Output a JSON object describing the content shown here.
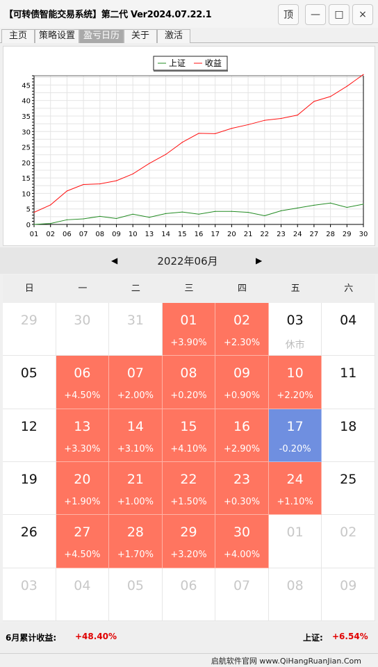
{
  "window": {
    "title": "【可转债智能交易系统】第二代 Ver2024.07.22.1",
    "buttons": {
      "top": "顶",
      "minimize": "—",
      "maximize": "□",
      "close": "×"
    }
  },
  "tabs": [
    {
      "label": "主页",
      "active": false
    },
    {
      "label": "策略设置",
      "active": false
    },
    {
      "label": "盈亏日历",
      "active": true
    },
    {
      "label": "关于",
      "active": false
    },
    {
      "label": "激活",
      "active": false
    }
  ],
  "chart_data": {
    "type": "line",
    "x": [
      "01",
      "02",
      "06",
      "07",
      "08",
      "09",
      "10",
      "13",
      "14",
      "15",
      "16",
      "17",
      "20",
      "21",
      "22",
      "23",
      "24",
      "27",
      "28",
      "29",
      "30"
    ],
    "series": [
      {
        "name": "上证",
        "color": "#228b22",
        "values": [
          0.0,
          0.3,
          1.5,
          1.8,
          2.6,
          1.9,
          3.3,
          2.3,
          3.5,
          4.0,
          3.3,
          4.2,
          4.2,
          3.9,
          2.8,
          4.4,
          5.3,
          6.2,
          6.9,
          5.5,
          6.54
        ]
      },
      {
        "name": "收益",
        "color": "#ff1010",
        "values": [
          3.9,
          6.3,
          10.8,
          12.9,
          13.1,
          14.1,
          16.3,
          19.7,
          22.6,
          26.5,
          29.4,
          29.3,
          31.0,
          32.2,
          33.6,
          34.2,
          35.3,
          39.7,
          41.3,
          44.6,
          48.4
        ]
      }
    ],
    "ylim": [
      0,
      48
    ],
    "yticks": [
      0,
      5,
      10,
      15,
      20,
      25,
      30,
      35,
      40,
      45
    ],
    "grid": true,
    "legend": "top-center"
  },
  "calendar": {
    "prev_icon": "triangle-left-icon",
    "next_icon": "triangle-right-icon",
    "month_label": "2022年06月",
    "weekdays": [
      "日",
      "一",
      "二",
      "三",
      "四",
      "五",
      "六"
    ],
    "weeks": [
      [
        {
          "day": "29",
          "state": "other"
        },
        {
          "day": "30",
          "state": "other"
        },
        {
          "day": "31",
          "state": "other"
        },
        {
          "day": "01",
          "state": "up",
          "pct": "+3.90%"
        },
        {
          "day": "02",
          "state": "up",
          "pct": "+2.30%"
        },
        {
          "day": "03",
          "state": "holiday",
          "note": "休市"
        },
        {
          "day": "04",
          "state": "plain"
        }
      ],
      [
        {
          "day": "05",
          "state": "plain"
        },
        {
          "day": "06",
          "state": "up",
          "pct": "+4.50%"
        },
        {
          "day": "07",
          "state": "up",
          "pct": "+2.00%"
        },
        {
          "day": "08",
          "state": "up",
          "pct": "+0.20%"
        },
        {
          "day": "09",
          "state": "up",
          "pct": "+0.90%"
        },
        {
          "day": "10",
          "state": "up",
          "pct": "+2.20%"
        },
        {
          "day": "11",
          "state": "plain"
        }
      ],
      [
        {
          "day": "12",
          "state": "plain"
        },
        {
          "day": "13",
          "state": "up",
          "pct": "+3.30%"
        },
        {
          "day": "14",
          "state": "up",
          "pct": "+3.10%"
        },
        {
          "day": "15",
          "state": "up",
          "pct": "+4.10%"
        },
        {
          "day": "16",
          "state": "up",
          "pct": "+2.90%"
        },
        {
          "day": "17",
          "state": "down",
          "pct": "-0.20%"
        },
        {
          "day": "18",
          "state": "plain"
        }
      ],
      [
        {
          "day": "19",
          "state": "plain"
        },
        {
          "day": "20",
          "state": "up",
          "pct": "+1.90%"
        },
        {
          "day": "21",
          "state": "up",
          "pct": "+1.00%"
        },
        {
          "day": "22",
          "state": "up",
          "pct": "+1.50%"
        },
        {
          "day": "23",
          "state": "up",
          "pct": "+0.30%"
        },
        {
          "day": "24",
          "state": "up",
          "pct": "+1.10%"
        },
        {
          "day": "25",
          "state": "plain"
        }
      ],
      [
        {
          "day": "26",
          "state": "plain"
        },
        {
          "day": "27",
          "state": "up",
          "pct": "+4.50%"
        },
        {
          "day": "28",
          "state": "up",
          "pct": "+1.70%"
        },
        {
          "day": "29",
          "state": "up",
          "pct": "+3.20%"
        },
        {
          "day": "30",
          "state": "up",
          "pct": "+4.00%"
        },
        {
          "day": "01",
          "state": "other"
        },
        {
          "day": "02",
          "state": "other"
        }
      ],
      [
        {
          "day": "03",
          "state": "other"
        },
        {
          "day": "04",
          "state": "other"
        },
        {
          "day": "05",
          "state": "other"
        },
        {
          "day": "06",
          "state": "other"
        },
        {
          "day": "07",
          "state": "other"
        },
        {
          "day": "08",
          "state": "other"
        },
        {
          "day": "09",
          "state": "other"
        }
      ]
    ]
  },
  "summary": {
    "cum_label": "6月累计收益:",
    "cum_value": "+48.40%",
    "index_label": "上证:",
    "index_value": "+6.54%"
  },
  "statusbar": {
    "text": "启航软件官网   www.QiHangRuanJian.Com"
  },
  "colors": {
    "up": "#ff7560",
    "down": "#6f8fe0",
    "profit_text": "#e00000"
  }
}
